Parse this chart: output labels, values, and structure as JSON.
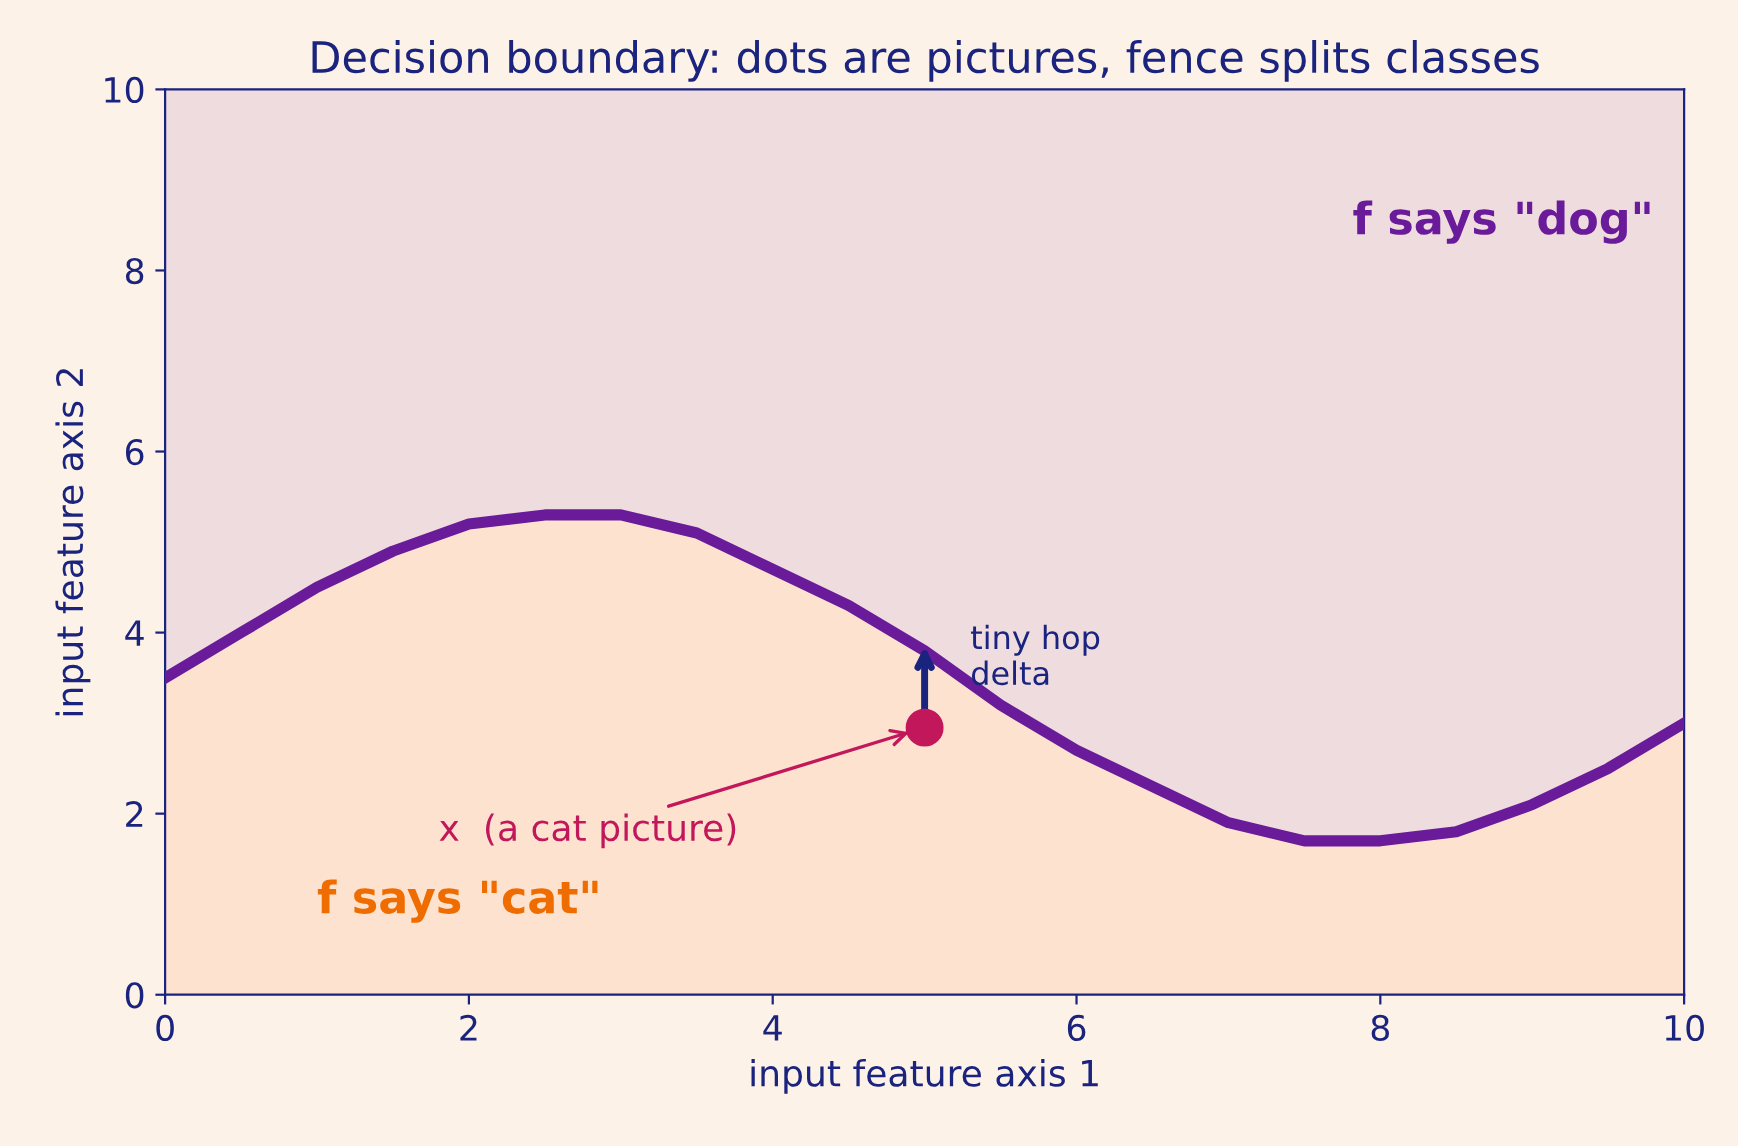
{
  "chart_data": {
    "type": "line",
    "title": "Decision boundary: dots are pictures, fence splits classes",
    "xlabel": "input feature axis 1",
    "ylabel": "input feature axis 2",
    "x": [
      0,
      0.5,
      1,
      1.5,
      2,
      2.5,
      3,
      3.5,
      4,
      4.5,
      5,
      5.5,
      6,
      6.5,
      7,
      7.5,
      8,
      8.5,
      9,
      9.5,
      10
    ],
    "series": [
      {
        "type": "area",
        "color": "#fde3cf",
        "values": [
          3.5,
          4.0,
          4.5,
          4.9,
          5.2,
          5.3,
          5.3,
          5.1,
          4.7,
          4.3,
          3.8,
          3.2,
          2.7,
          2.3,
          1.9,
          1.7,
          1.7,
          1.8,
          2.1,
          2.5,
          3.0
        ]
      },
      {
        "color": "#6a1b9a",
        "values": [
          3.5,
          4.0,
          4.5,
          4.9,
          5.2,
          5.3,
          5.3,
          5.1,
          4.7,
          4.3,
          3.8,
          3.2,
          2.7,
          2.3,
          1.9,
          1.7,
          1.7,
          1.8,
          2.1,
          2.5,
          3.0
        ]
      },
      {
        "type": "scatter",
        "color": "#c2185b",
        "x": [
          5
        ],
        "values": [
          2.95
        ]
      }
    ],
    "annotations": [
      {
        "text": "x  (a cat picture)",
        "x": 4.9,
        "y": 2.9
      },
      {
        "text": "tiny hop\ndelta",
        "x": 5,
        "y": 3.85
      },
      "f says \"dog\"",
      "f says \"cat\""
    ],
    "xlim": [
      0,
      10
    ],
    "ylim": [
      0,
      10
    ],
    "xticks": [
      0,
      2,
      4,
      6,
      8,
      10
    ],
    "yticks": [
      0,
      2,
      4,
      6,
      8,
      10
    ],
    "grid": false,
    "line_style": "solid"
  }
}
